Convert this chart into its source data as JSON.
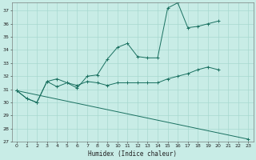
{
  "xlabel": "Humidex (Indice chaleur)",
  "bg_color": "#c8ece6",
  "grid_color": "#a8d8d0",
  "line_color": "#1a7060",
  "xlim": [
    -0.5,
    23.5
  ],
  "ylim": [
    27,
    37.6
  ],
  "yticks": [
    27,
    28,
    29,
    30,
    31,
    32,
    33,
    34,
    35,
    36,
    37
  ],
  "xticks": [
    0,
    1,
    2,
    3,
    4,
    5,
    6,
    7,
    8,
    9,
    10,
    11,
    12,
    13,
    14,
    15,
    16,
    17,
    18,
    19,
    20,
    21,
    22,
    23
  ],
  "series": [
    {
      "x": [
        0,
        1,
        2,
        3,
        4,
        5,
        6,
        7,
        8,
        9,
        10,
        11,
        12,
        13,
        14,
        15,
        16,
        17,
        18,
        19,
        20
      ],
      "y": [
        30.9,
        30.3,
        30.0,
        31.6,
        31.8,
        31.5,
        31.1,
        32.0,
        32.1,
        33.3,
        34.2,
        34.5,
        33.5,
        33.4,
        33.4,
        37.2,
        37.6,
        35.7,
        35.8,
        36.0,
        36.2
      ]
    },
    {
      "x": [
        0,
        1,
        2,
        3,
        4,
        5,
        6,
        7,
        8,
        9,
        10,
        11,
        12,
        13,
        14,
        15,
        16,
        17,
        18,
        19,
        20
      ],
      "y": [
        30.9,
        30.3,
        30.0,
        31.6,
        31.2,
        31.5,
        31.3,
        31.6,
        31.5,
        31.3,
        31.5,
        31.5,
        31.5,
        31.5,
        31.5,
        31.8,
        32.0,
        32.2,
        32.5,
        32.7,
        32.5
      ]
    },
    {
      "x": [
        0,
        23
      ],
      "y": [
        30.9,
        27.2
      ]
    }
  ]
}
